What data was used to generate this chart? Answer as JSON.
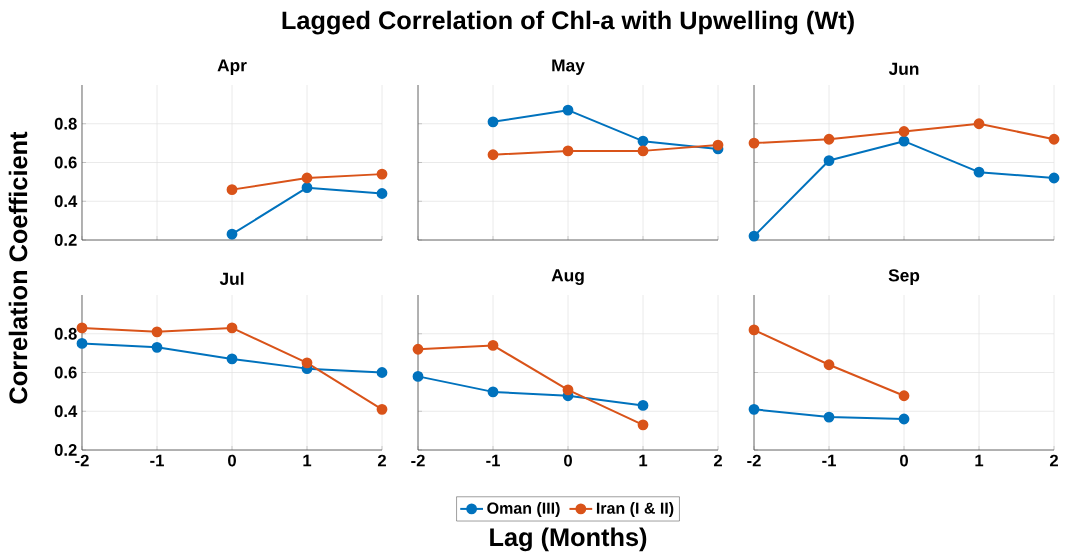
{
  "chart_data": [
    {
      "type": "line",
      "title": "Apr",
      "annotations": [
        "Lagged Correlation of Chl-a with Upwelling (Wt)"
      ],
      "ylabel": "Correlation Coefficient",
      "xlim": [
        -2,
        2
      ],
      "xticks": [
        -2,
        -1,
        0,
        1,
        2
      ],
      "ylim": [
        0.2,
        1.0
      ],
      "yticks": [
        0.2,
        0.4,
        0.6,
        0.8
      ],
      "grid": true,
      "marker": "circle",
      "tick_labels": "y",
      "series": [
        {
          "color": "#0072bd",
          "x": [
            0,
            1,
            2
          ],
          "values": [
            0.23,
            0.47,
            0.44
          ]
        },
        {
          "color": "#d95319",
          "x": [
            0,
            1,
            2
          ],
          "values": [
            0.46,
            0.52,
            0.54
          ]
        }
      ]
    },
    {
      "type": "line",
      "title": "May",
      "xlim": [
        -2,
        2
      ],
      "xticks": [
        -2,
        -1,
        0,
        1,
        2
      ],
      "ylim": [
        0.2,
        1.0
      ],
      "yticks": [
        0.2,
        0.4,
        0.6,
        0.8
      ],
      "grid": true,
      "marker": "circle",
      "tick_labels": false,
      "series": [
        {
          "color": "#0072bd",
          "x": [
            -1,
            0,
            1,
            2
          ],
          "values": [
            0.81,
            0.87,
            0.71,
            0.67
          ]
        },
        {
          "color": "#d95319",
          "x": [
            -1,
            0,
            1,
            2
          ],
          "values": [
            0.64,
            0.66,
            0.66,
            0.69
          ]
        }
      ]
    },
    {
      "type": "line",
      "title": "Jun",
      "x": [
        -2,
        -1,
        0,
        1,
        2
      ],
      "xlim": [
        -2,
        2
      ],
      "xticks": [
        -2,
        -1,
        0,
        1,
        2
      ],
      "ylim": [
        0.2,
        1.0
      ],
      "yticks": [
        0.2,
        0.4,
        0.6,
        0.8
      ],
      "grid": true,
      "marker": "circle",
      "tick_labels": false,
      "series": [
        {
          "color": "#0072bd",
          "values": [
            0.22,
            0.61,
            0.71,
            0.55,
            0.52
          ]
        },
        {
          "color": "#d95319",
          "values": [
            0.7,
            0.72,
            0.76,
            0.8,
            0.72
          ]
        }
      ]
    },
    {
      "type": "line",
      "title": "Jul",
      "x": [
        -2,
        -1,
        0,
        1,
        2
      ],
      "xlim": [
        -2,
        2
      ],
      "xticks": [
        -2,
        -1,
        0,
        1,
        2
      ],
      "ylim": [
        0.2,
        1.0
      ],
      "yticks": [
        0.2,
        0.4,
        0.6,
        0.8
      ],
      "grid": true,
      "marker": "circle",
      "series": [
        {
          "color": "#0072bd",
          "values": [
            0.75,
            0.73,
            0.67,
            0.62,
            0.6
          ]
        },
        {
          "color": "#d95319",
          "values": [
            0.83,
            0.81,
            0.83,
            0.65,
            0.41
          ]
        }
      ]
    },
    {
      "type": "line",
      "title": "Aug",
      "xlabel": "Lag (Months)",
      "legend": "bottom",
      "xlim": [
        -2,
        2
      ],
      "xticks": [
        -2,
        -1,
        0,
        1,
        2
      ],
      "ylim": [
        0.2,
        1.0
      ],
      "yticks": [
        0.2,
        0.4,
        0.6,
        0.8
      ],
      "grid": true,
      "marker": "circle",
      "tick_labels": "x",
      "series": [
        {
          "name": "Oman (III)",
          "color": "#0072bd",
          "x": [
            -2,
            -1,
            0,
            1
          ],
          "values": [
            0.58,
            0.5,
            0.48,
            0.43
          ]
        },
        {
          "name": "Iran (I & II)",
          "color": "#d95319",
          "x": [
            -2,
            -1,
            0,
            1
          ],
          "values": [
            0.72,
            0.74,
            0.51,
            0.33
          ]
        }
      ]
    },
    {
      "type": "line",
      "title": "Sep",
      "xlim": [
        -2,
        2
      ],
      "xticks": [
        -2,
        -1,
        0,
        1,
        2
      ],
      "ylim": [
        0.2,
        1.0
      ],
      "yticks": [
        0.2,
        0.4,
        0.6,
        0.8
      ],
      "grid": true,
      "marker": "circle",
      "tick_labels": "x",
      "series": [
        {
          "color": "#0072bd",
          "x": [
            -2,
            -1,
            0
          ],
          "values": [
            0.41,
            0.37,
            0.36
          ]
        },
        {
          "color": "#d95319",
          "x": [
            -2,
            -1,
            0
          ],
          "values": [
            0.82,
            0.64,
            0.48
          ]
        }
      ]
    }
  ]
}
